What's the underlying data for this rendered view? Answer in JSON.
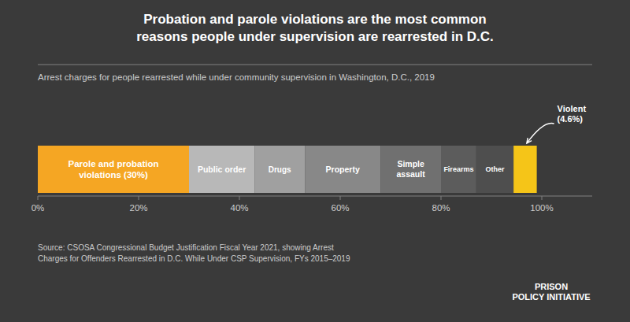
{
  "chart_data": {
    "type": "bar",
    "orientation": "horizontal",
    "stacked": true,
    "grid": false,
    "title": "Probation and parole violations are the most common\nreasons people under supervision are rearrested in D.C.",
    "subtitle": "Arrest charges for people rearrested while under community supervision in Washington, D.C., 2019",
    "source": "Source: CSOSA Congressional Budget Justification Fiscal Year 2021, showing Arrest\nCharges for Offenders Rearrested in D.C. While Under CSP Supervision, FYs 2015–2019",
    "annotations": [
      "PRISON\nPOLICY INITIATIVE"
    ],
    "categories": [
      null
    ],
    "series": [
      {
        "name": "Parole and probation\nviolations (30%)",
        "color": "#f5a623",
        "values": [
          30.0
        ]
      },
      {
        "name": "Public order",
        "color": "#b8b8b8",
        "values": [
          13.0
        ]
      },
      {
        "name": "Drugs",
        "color": "#a0a0a0",
        "values": [
          10.0
        ]
      },
      {
        "name": "Property",
        "color": "#888888",
        "values": [
          15.0
        ]
      },
      {
        "name": "Simple\nassault",
        "color": "#707070",
        "values": [
          12.0
        ]
      },
      {
        "name": "Firearms",
        "color": "#5c5c5c",
        "values": [
          7.0
        ]
      },
      {
        "name": "Other",
        "color": "#4e4e4e",
        "values": [
          7.4
        ]
      },
      {
        "name": "Violent\n(4.6%)",
        "color": "#f5c518",
        "values": [
          4.6
        ]
      }
    ],
    "xlim": [
      0,
      110
    ],
    "xticks": [
      {
        "value": 0,
        "label": "0%"
      },
      {
        "value": 20,
        "label": "20%"
      },
      {
        "value": 40,
        "label": "40%"
      },
      {
        "value": 60,
        "label": "60%"
      },
      {
        "value": 80,
        "label": "80%"
      },
      {
        "value": 100,
        "label": "100%"
      }
    ]
  }
}
